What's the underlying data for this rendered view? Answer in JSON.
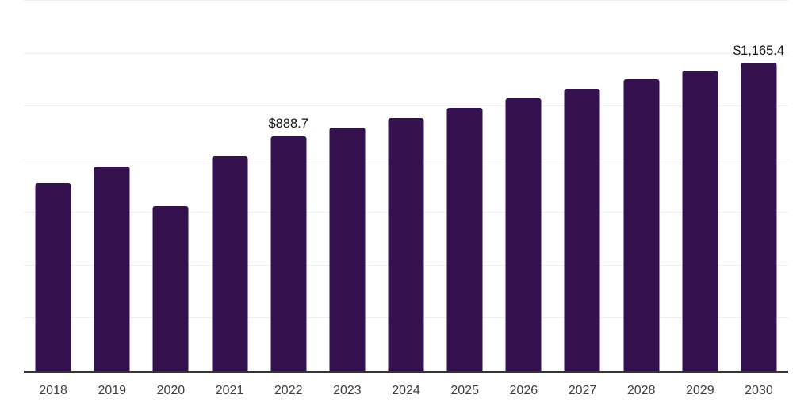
{
  "chart_data": {
    "type": "bar",
    "categories": [
      "2018",
      "2019",
      "2020",
      "2021",
      "2022",
      "2023",
      "2024",
      "2025",
      "2026",
      "2027",
      "2028",
      "2029",
      "2030"
    ],
    "values": [
      712,
      774,
      624,
      811,
      888.7,
      921,
      956,
      994,
      1031,
      1067,
      1104,
      1136,
      1165.4
    ],
    "data_labels": {
      "2022": "$888.7",
      "2030": "$1,165.4"
    },
    "title": "",
    "xlabel": "",
    "ylabel": "",
    "ylim": [
      0,
      1400
    ],
    "gridline_step": 200,
    "grid": true,
    "legend": false,
    "y_axis_ticks_visible": false
  },
  "style": {
    "bar_color": "#361150",
    "axis_line_color": "#333333",
    "gridline_color": "#f0f0f0",
    "value_label_color": "#111111",
    "x_label_color": "#3d3d3d",
    "background_color": "#ffffff"
  }
}
